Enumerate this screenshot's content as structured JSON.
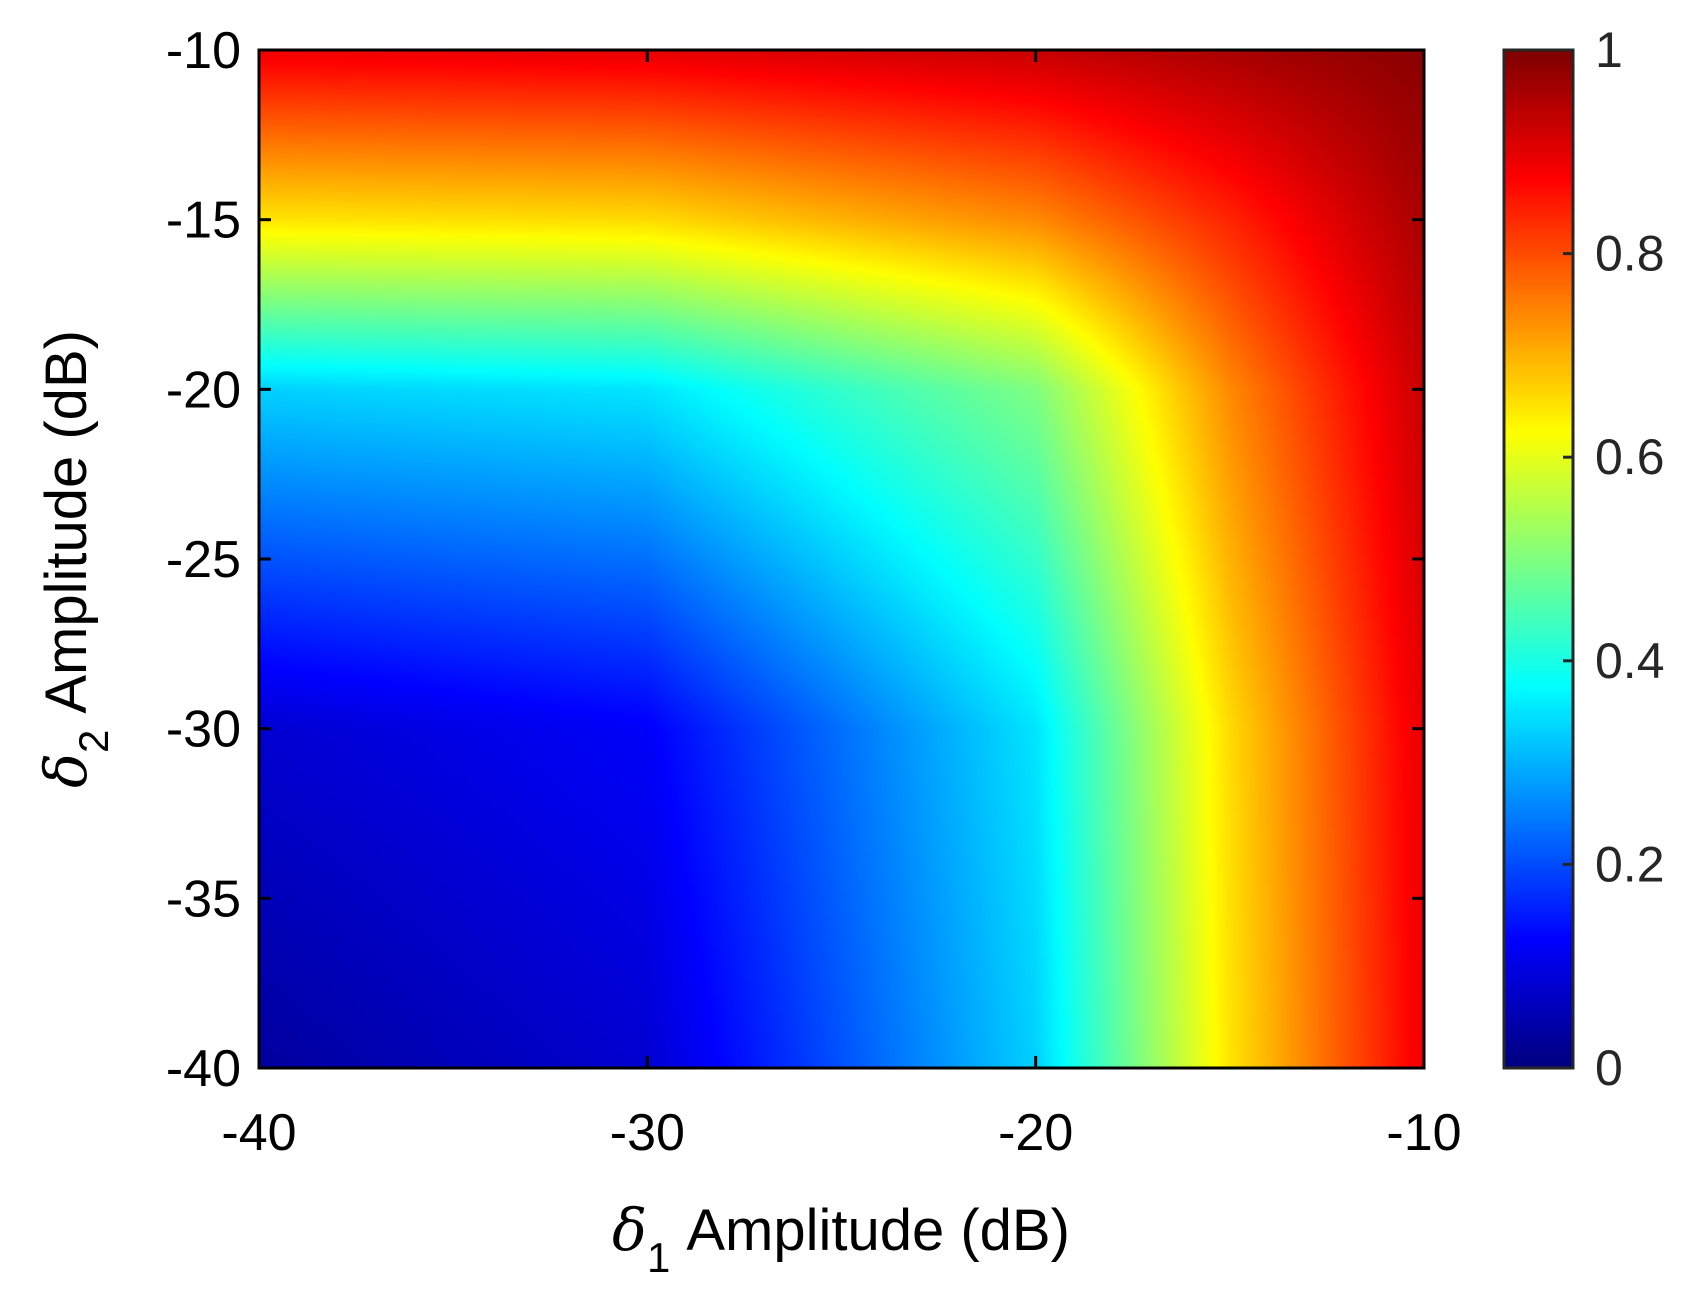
{
  "chart_data": {
    "type": "heatmap",
    "title": "",
    "xlabel": {
      "symbol": "δ",
      "subscript": "1",
      "text": "Amplitude (dB)"
    },
    "ylabel": {
      "symbol": "δ",
      "subscript": "2",
      "text": "Amplitude (dB)"
    },
    "xlim": [
      -40,
      -10
    ],
    "ylim": [
      -40,
      -10
    ],
    "x_ticks": [
      -40,
      -30,
      -20,
      -10
    ],
    "y_ticks": [
      -40,
      -35,
      -30,
      -25,
      -20,
      -15,
      -10
    ],
    "x_tick_labels": [
      "-40",
      "-30",
      "-20",
      "-10"
    ],
    "y_tick_labels": [
      "-40",
      "-35",
      "-30",
      "-25",
      "-20",
      "-15",
      "-10"
    ],
    "colormap": "jet",
    "colorbar": {
      "range": [
        0,
        1
      ],
      "ticks": [
        0,
        0.2,
        0.4,
        0.6,
        0.8,
        1
      ],
      "tick_labels": [
        "0",
        "0.2",
        "0.4",
        "0.6",
        "0.8",
        "1"
      ]
    },
    "grid": false,
    "value_samples": {
      "x": [
        -40,
        -30,
        -20,
        -15,
        -10
      ],
      "y": [
        -40,
        -30,
        -20,
        -15,
        -10
      ],
      "z": [
        [
          0.03,
          0.08,
          0.33,
          0.65,
          0.89
        ],
        [
          0.08,
          0.12,
          0.35,
          0.66,
          0.9
        ],
        [
          0.33,
          0.35,
          0.5,
          0.74,
          0.93
        ],
        [
          0.65,
          0.66,
          0.74,
          0.84,
          0.96
        ],
        [
          0.89,
          0.9,
          0.93,
          0.96,
          0.99
        ]
      ]
    }
  }
}
